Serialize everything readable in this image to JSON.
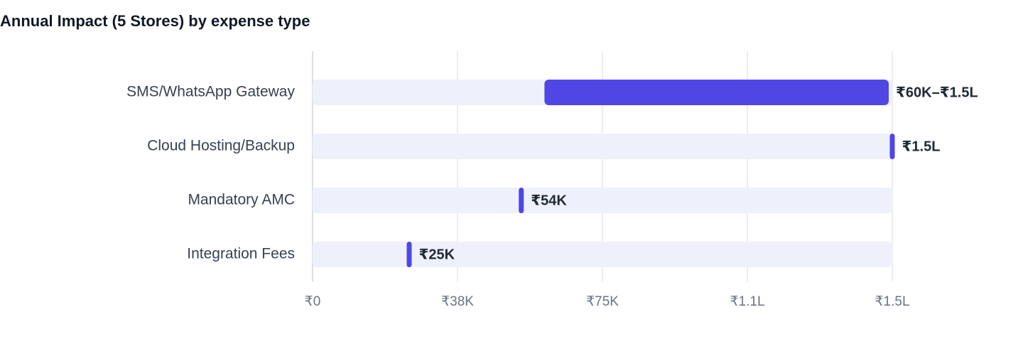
{
  "chart_data": {
    "type": "range-bar",
    "title": "Annual Impact (5 Stores) by expense type",
    "categories": [
      "SMS/WhatsApp Gateway",
      "Cloud Hosting/Backup",
      "Mandatory AMC",
      "Integration Fees"
    ],
    "low": [
      60000,
      null,
      null,
      null
    ],
    "values": [
      150000,
      150000,
      54000,
      25000
    ],
    "value_labels": [
      "₹60K–₹1.5L",
      "₹1.5L",
      "₹54K",
      "₹25K"
    ],
    "color": "#4f46e5",
    "track_color": "#eef0fc",
    "xlim": [
      0,
      150000
    ],
    "xticks": [
      {
        "value": 0,
        "label": "₹0"
      },
      {
        "value": 37500,
        "label": "₹38K"
      },
      {
        "value": 75000,
        "label": "₹75K"
      },
      {
        "value": 112500,
        "label": "₹1.1L"
      },
      {
        "value": 150000,
        "label": "₹1.5L"
      }
    ],
    "grid": true
  }
}
